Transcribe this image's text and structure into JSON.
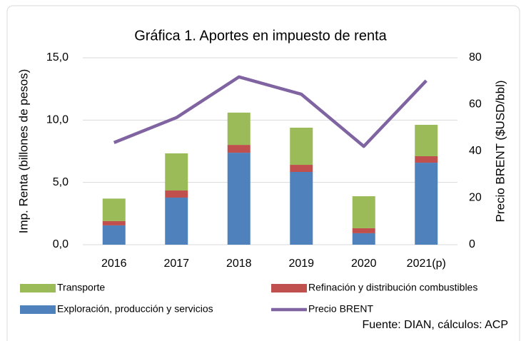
{
  "chart_data": {
    "type": "bar",
    "title": "Gráfica 1. Aportes en impuesto de renta",
    "ylabel": "Imp. Renta (billones de pesos)",
    "y2label": "Precio BRENT ($USD/bbl)",
    "source": "Fuente: DIAN, cálculos: ACP",
    "categories": [
      "2016",
      "2017",
      "2018",
      "2019",
      "2020",
      "2021(p)"
    ],
    "stacked": true,
    "grid": true,
    "series": [
      {
        "name": "Exploración, producción y servicios",
        "color": "#4f81bd",
        "values": [
          1.55,
          3.78,
          7.38,
          5.84,
          0.92,
          6.58
        ]
      },
      {
        "name": "Refinación y distribución combustibles",
        "color": "#c0504d",
        "values": [
          0.35,
          0.57,
          0.63,
          0.57,
          0.4,
          0.52
        ]
      },
      {
        "name": "Transporte",
        "color": "#9bbb59",
        "values": [
          1.8,
          2.98,
          2.59,
          2.98,
          2.57,
          2.52
        ]
      },
      {
        "name": "Precio BRENT",
        "color": "#8064a2",
        "type": "line",
        "axis": "y2",
        "values": [
          43.7,
          54.4,
          71.8,
          64.4,
          42.1,
          70.2
        ]
      }
    ],
    "ylim": [
      0,
      15
    ],
    "yticks": [
      {
        "value": 0,
        "label": "0,0"
      },
      {
        "value": 5,
        "label": "5,0"
      },
      {
        "value": 10,
        "label": "10,0"
      },
      {
        "value": 15,
        "label": "15,0"
      }
    ],
    "y2lim": [
      0,
      80
    ],
    "y2ticks": [
      0,
      20,
      40,
      60,
      80
    ]
  }
}
